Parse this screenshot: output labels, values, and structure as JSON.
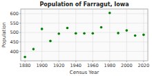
{
  "chart_data": {
    "type": "scatter",
    "title": "Population of Farragut, Iowa",
    "x_label": "Census Year",
    "y_label": "Population",
    "x": [
      1880,
      1890,
      1900,
      1910,
      1920,
      1930,
      1940,
      1950,
      1960,
      1970,
      1980,
      1990,
      2000,
      2010,
      2020
    ],
    "values": [
      370,
      412,
      519,
      455,
      494,
      524,
      496,
      496,
      496,
      528,
      604,
      497,
      511,
      484,
      488
    ],
    "color": "#008000",
    "xlim": [
      1875,
      2025
    ],
    "xticks": [
      1880,
      1900,
      1920,
      1940,
      1960,
      1980,
      2000,
      2020
    ],
    "ylim": [
      350,
      625
    ],
    "yticks": [
      400,
      450,
      500,
      550,
      600
    ],
    "grid": true
  }
}
